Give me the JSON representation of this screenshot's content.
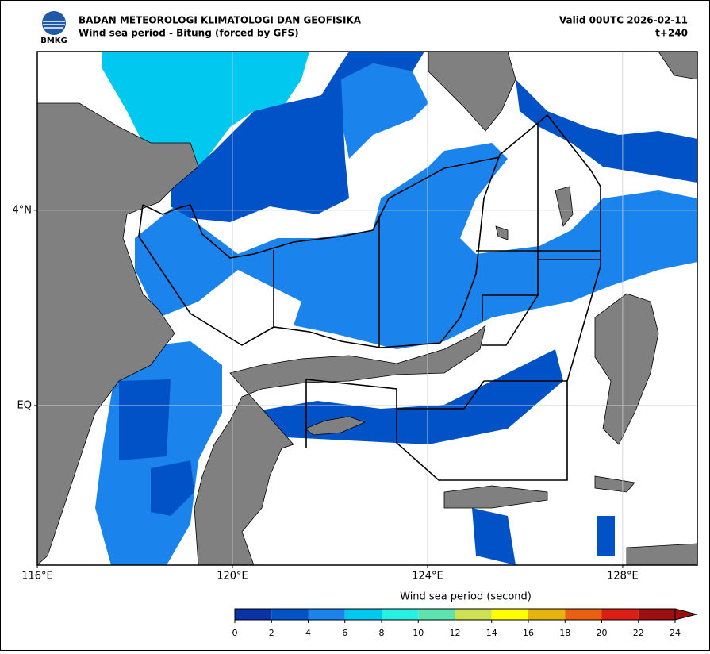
{
  "header": {
    "logo_text": "BMKG",
    "agency": "BADAN METEOROLOGI KLIMATOLOGI DAN GEOFISIKA",
    "subtitle": "Wind sea period - Bitung (forced by GFS)",
    "valid": "Valid 00UTC 2026-02-11",
    "lead": "t+240"
  },
  "map": {
    "xlim": [
      116,
      129.53
    ],
    "ylim": [
      -3.27,
      7.25
    ],
    "xticks": [
      {
        "value": 116,
        "label": "116°E"
      },
      {
        "value": 120,
        "label": "120°E"
      },
      {
        "value": 124,
        "label": "124°E"
      },
      {
        "value": 128,
        "label": "128°E"
      }
    ],
    "yticks": [
      {
        "value": 0,
        "label": "EQ"
      },
      {
        "value": 4,
        "label": "4°N"
      }
    ],
    "grid": true
  },
  "colorbar": {
    "label": "Wind sea period (second)",
    "ticks": [
      0,
      2,
      4,
      6,
      8,
      10,
      12,
      14,
      16,
      18,
      20,
      22,
      24
    ],
    "colors": [
      "#0a33a3",
      "#0052c6",
      "#1a84ec",
      "#00c8ee",
      "#25f2e2",
      "#5de3b0",
      "#cde152",
      "#ffff00",
      "#e6b40c",
      "#e86010",
      "#dc1e14",
      "#9e1010"
    ]
  }
}
